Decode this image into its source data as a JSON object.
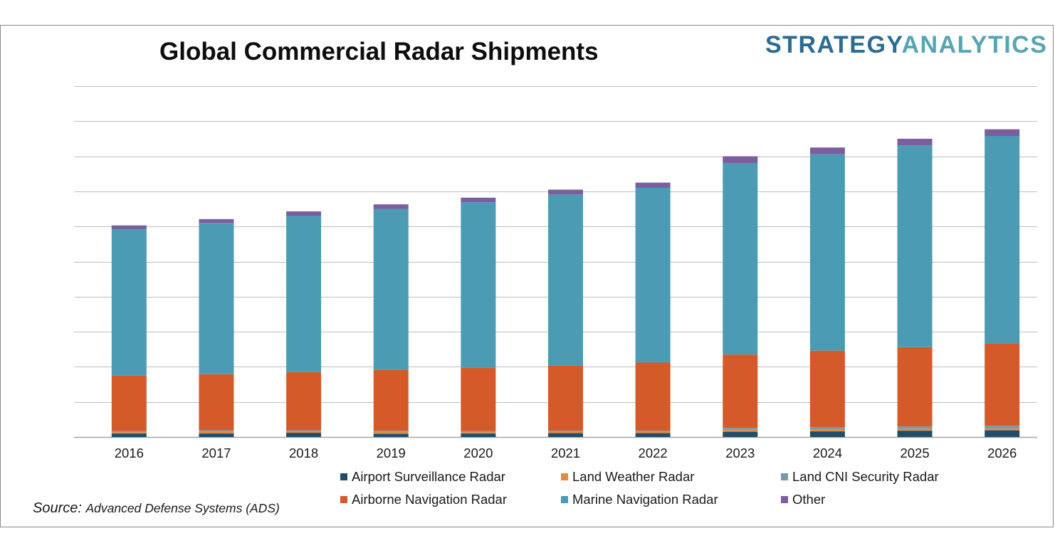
{
  "title": "Global Commercial Radar Shipments",
  "logo": {
    "word1": "STRATEGY",
    "word2": "ANALYTICS"
  },
  "source": {
    "label": "Source:",
    "value": "Advanced Defense Systems (ADS)"
  },
  "chart_data": {
    "type": "bar",
    "stacked": true,
    "title": "Global Commercial Radar Shipments",
    "xlabel": "",
    "ylabel": "",
    "ylim": [
      0,
      100
    ],
    "y_tick_labels_shown": false,
    "grid": true,
    "legend_position": "bottom",
    "categories": [
      "2016",
      "2017",
      "2018",
      "2019",
      "2020",
      "2021",
      "2022",
      "2023",
      "2024",
      "2025",
      "2026"
    ],
    "series": [
      {
        "name": "Airport Surveillance Radar",
        "color": "#1f4e6b",
        "values": [
          1.0,
          1.0,
          1.2,
          0.9,
          1.0,
          1.1,
          1.1,
          1.5,
          1.6,
          1.8,
          1.9
        ]
      },
      {
        "name": "Land Weather Radar",
        "color": "#e58a3b",
        "values": [
          0.4,
          0.6,
          0.4,
          0.6,
          0.4,
          0.4,
          0.4,
          0.5,
          0.5,
          0.5,
          0.5
        ]
      },
      {
        "name": "Land CNI Security Radar",
        "color": "#7a99a6",
        "values": [
          0.3,
          0.3,
          0.3,
          0.3,
          0.3,
          0.3,
          0.3,
          0.6,
          0.7,
          0.7,
          0.8
        ]
      },
      {
        "name": "Airborne Navigation Radar",
        "color": "#d45a2a",
        "values": [
          15.8,
          16.0,
          16.6,
          17.3,
          18.0,
          18.5,
          19.4,
          20.9,
          21.8,
          22.6,
          23.5
        ]
      },
      {
        "name": "Marine Navigation Radar",
        "color": "#4a9bb3",
        "values": [
          41.7,
          43.1,
          44.5,
          45.9,
          47.2,
          48.8,
          49.8,
          54.6,
          56.0,
          57.5,
          59.1
        ]
      },
      {
        "name": "Other",
        "color": "#7b5ea0",
        "values": [
          1.1,
          1.1,
          1.3,
          1.3,
          1.3,
          1.4,
          1.5,
          1.9,
          1.9,
          1.9,
          1.9
        ]
      }
    ]
  }
}
